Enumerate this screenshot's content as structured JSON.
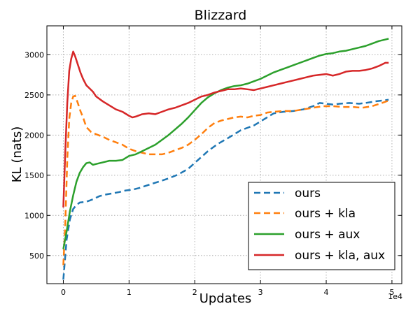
{
  "chart_data": {
    "type": "line",
    "title": "Blizzard",
    "xlabel": "Updates",
    "ylabel": "KL (nats)",
    "x_multiplier_label": "1e4",
    "xlim": [
      -0.25,
      5.15
    ],
    "ylim": [
      150,
      3360
    ],
    "xticks": [
      0,
      1,
      2,
      3,
      4,
      5
    ],
    "xtick_labels": [
      "0",
      "1",
      "2",
      "3",
      "4",
      "5"
    ],
    "yticks": [
      500,
      1000,
      1500,
      2000,
      2500,
      3000
    ],
    "ytick_labels": [
      "500",
      "1000",
      "1500",
      "2000",
      "2500",
      "3000"
    ],
    "grid": true,
    "legend_position": "lower-right",
    "series": [
      {
        "name": "ours",
        "color": "#1f77b4",
        "style": "dashed",
        "points": [
          [
            0.0,
            200
          ],
          [
            0.05,
            700
          ],
          [
            0.1,
            950
          ],
          [
            0.15,
            1080
          ],
          [
            0.2,
            1130
          ],
          [
            0.25,
            1160
          ],
          [
            0.35,
            1170
          ],
          [
            0.45,
            1200
          ],
          [
            0.55,
            1240
          ],
          [
            0.65,
            1260
          ],
          [
            0.75,
            1275
          ],
          [
            0.85,
            1290
          ],
          [
            0.95,
            1310
          ],
          [
            1.05,
            1320
          ],
          [
            1.15,
            1340
          ],
          [
            1.3,
            1380
          ],
          [
            1.45,
            1420
          ],
          [
            1.6,
            1460
          ],
          [
            1.75,
            1510
          ],
          [
            1.9,
            1580
          ],
          [
            2.05,
            1690
          ],
          [
            2.2,
            1800
          ],
          [
            2.35,
            1890
          ],
          [
            2.5,
            1960
          ],
          [
            2.6,
            2010
          ],
          [
            2.7,
            2060
          ],
          [
            2.8,
            2090
          ],
          [
            2.9,
            2120
          ],
          [
            3.0,
            2170
          ],
          [
            3.1,
            2220
          ],
          [
            3.2,
            2270
          ],
          [
            3.35,
            2290
          ],
          [
            3.5,
            2300
          ],
          [
            3.65,
            2320
          ],
          [
            3.8,
            2360
          ],
          [
            3.9,
            2400
          ],
          [
            4.0,
            2390
          ],
          [
            4.1,
            2380
          ],
          [
            4.2,
            2390
          ],
          [
            4.35,
            2400
          ],
          [
            4.5,
            2390
          ],
          [
            4.6,
            2400
          ],
          [
            4.75,
            2420
          ],
          [
            4.85,
            2430
          ],
          [
            4.95,
            2440
          ]
        ]
      },
      {
        "name": "ours + kla",
        "color": "#ff7f0e",
        "style": "dashed",
        "points": [
          [
            0.0,
            380
          ],
          [
            0.03,
            900
          ],
          [
            0.06,
            1700
          ],
          [
            0.09,
            2200
          ],
          [
            0.12,
            2400
          ],
          [
            0.15,
            2480
          ],
          [
            0.18,
            2490
          ],
          [
            0.22,
            2400
          ],
          [
            0.26,
            2300
          ],
          [
            0.3,
            2220
          ],
          [
            0.35,
            2100
          ],
          [
            0.42,
            2040
          ],
          [
            0.5,
            2010
          ],
          [
            0.6,
            1980
          ],
          [
            0.7,
            1940
          ],
          [
            0.8,
            1910
          ],
          [
            0.9,
            1880
          ],
          [
            1.0,
            1830
          ],
          [
            1.1,
            1800
          ],
          [
            1.2,
            1780
          ],
          [
            1.3,
            1760
          ],
          [
            1.4,
            1760
          ],
          [
            1.5,
            1760
          ],
          [
            1.6,
            1780
          ],
          [
            1.7,
            1810
          ],
          [
            1.8,
            1840
          ],
          [
            1.9,
            1880
          ],
          [
            2.0,
            1940
          ],
          [
            2.1,
            2010
          ],
          [
            2.2,
            2090
          ],
          [
            2.3,
            2150
          ],
          [
            2.4,
            2180
          ],
          [
            2.5,
            2200
          ],
          [
            2.6,
            2220
          ],
          [
            2.7,
            2230
          ],
          [
            2.8,
            2220
          ],
          [
            2.9,
            2240
          ],
          [
            3.0,
            2250
          ],
          [
            3.1,
            2280
          ],
          [
            3.2,
            2290
          ],
          [
            3.35,
            2300
          ],
          [
            3.5,
            2300
          ],
          [
            3.65,
            2320
          ],
          [
            3.8,
            2340
          ],
          [
            3.95,
            2360
          ],
          [
            4.1,
            2360
          ],
          [
            4.25,
            2350
          ],
          [
            4.4,
            2350
          ],
          [
            4.55,
            2340
          ],
          [
            4.7,
            2360
          ],
          [
            4.85,
            2400
          ],
          [
            4.95,
            2430
          ]
        ]
      },
      {
        "name": "ours + aux",
        "color": "#2ca02c",
        "style": "solid",
        "points": [
          [
            0.0,
            580
          ],
          [
            0.05,
            800
          ],
          [
            0.1,
            1050
          ],
          [
            0.15,
            1250
          ],
          [
            0.2,
            1420
          ],
          [
            0.25,
            1530
          ],
          [
            0.3,
            1600
          ],
          [
            0.35,
            1650
          ],
          [
            0.4,
            1660
          ],
          [
            0.45,
            1630
          ],
          [
            0.5,
            1640
          ],
          [
            0.6,
            1660
          ],
          [
            0.7,
            1680
          ],
          [
            0.8,
            1680
          ],
          [
            0.9,
            1690
          ],
          [
            1.0,
            1740
          ],
          [
            1.1,
            1760
          ],
          [
            1.2,
            1800
          ],
          [
            1.3,
            1840
          ],
          [
            1.4,
            1880
          ],
          [
            1.5,
            1940
          ],
          [
            1.6,
            2000
          ],
          [
            1.7,
            2070
          ],
          [
            1.8,
            2140
          ],
          [
            1.9,
            2220
          ],
          [
            2.0,
            2310
          ],
          [
            2.1,
            2400
          ],
          [
            2.2,
            2470
          ],
          [
            2.3,
            2520
          ],
          [
            2.4,
            2560
          ],
          [
            2.5,
            2590
          ],
          [
            2.6,
            2610
          ],
          [
            2.7,
            2620
          ],
          [
            2.8,
            2640
          ],
          [
            2.9,
            2670
          ],
          [
            3.0,
            2700
          ],
          [
            3.1,
            2740
          ],
          [
            3.2,
            2780
          ],
          [
            3.3,
            2810
          ],
          [
            3.4,
            2840
          ],
          [
            3.5,
            2870
          ],
          [
            3.6,
            2900
          ],
          [
            3.7,
            2930
          ],
          [
            3.8,
            2960
          ],
          [
            3.9,
            2990
          ],
          [
            4.0,
            3010
          ],
          [
            4.1,
            3020
          ],
          [
            4.2,
            3040
          ],
          [
            4.3,
            3050
          ],
          [
            4.4,
            3070
          ],
          [
            4.5,
            3090
          ],
          [
            4.6,
            3110
          ],
          [
            4.7,
            3140
          ],
          [
            4.8,
            3170
          ],
          [
            4.9,
            3190
          ],
          [
            4.95,
            3200
          ]
        ]
      },
      {
        "name": "ours + kla, aux",
        "color": "#d62728",
        "style": "solid",
        "points": [
          [
            0.0,
            1100
          ],
          [
            0.03,
            1800
          ],
          [
            0.06,
            2400
          ],
          [
            0.09,
            2800
          ],
          [
            0.12,
            2950
          ],
          [
            0.15,
            3040
          ],
          [
            0.18,
            2980
          ],
          [
            0.22,
            2880
          ],
          [
            0.26,
            2780
          ],
          [
            0.3,
            2700
          ],
          [
            0.35,
            2620
          ],
          [
            0.4,
            2580
          ],
          [
            0.45,
            2540
          ],
          [
            0.5,
            2480
          ],
          [
            0.6,
            2420
          ],
          [
            0.7,
            2370
          ],
          [
            0.8,
            2320
          ],
          [
            0.9,
            2290
          ],
          [
            1.0,
            2240
          ],
          [
            1.05,
            2220
          ],
          [
            1.1,
            2230
          ],
          [
            1.2,
            2260
          ],
          [
            1.3,
            2270
          ],
          [
            1.4,
            2260
          ],
          [
            1.5,
            2290
          ],
          [
            1.6,
            2320
          ],
          [
            1.7,
            2340
          ],
          [
            1.8,
            2370
          ],
          [
            1.9,
            2400
          ],
          [
            2.0,
            2440
          ],
          [
            2.1,
            2480
          ],
          [
            2.2,
            2500
          ],
          [
            2.3,
            2530
          ],
          [
            2.4,
            2550
          ],
          [
            2.5,
            2570
          ],
          [
            2.6,
            2570
          ],
          [
            2.7,
            2580
          ],
          [
            2.8,
            2570
          ],
          [
            2.9,
            2560
          ],
          [
            3.0,
            2580
          ],
          [
            3.1,
            2600
          ],
          [
            3.2,
            2620
          ],
          [
            3.3,
            2640
          ],
          [
            3.4,
            2660
          ],
          [
            3.5,
            2680
          ],
          [
            3.6,
            2700
          ],
          [
            3.7,
            2720
          ],
          [
            3.8,
            2740
          ],
          [
            3.9,
            2750
          ],
          [
            4.0,
            2760
          ],
          [
            4.1,
            2740
          ],
          [
            4.2,
            2760
          ],
          [
            4.3,
            2790
          ],
          [
            4.4,
            2800
          ],
          [
            4.5,
            2800
          ],
          [
            4.6,
            2810
          ],
          [
            4.7,
            2830
          ],
          [
            4.8,
            2860
          ],
          [
            4.9,
            2900
          ],
          [
            4.95,
            2900
          ]
        ]
      }
    ]
  }
}
